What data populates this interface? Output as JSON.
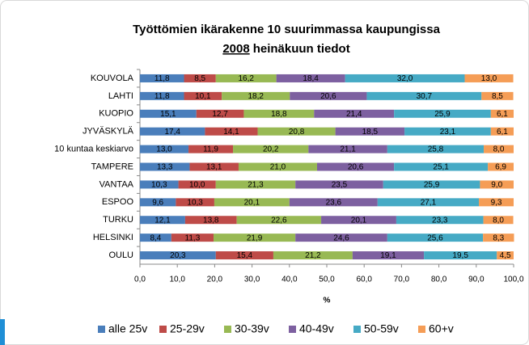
{
  "chart_data": {
    "type": "stacked-bar-horizontal",
    "title": "Työttömien ikärakenne 10 suurimmassa kaupungissa",
    "subtitle_year": "2008",
    "subtitle": "heinäkuun tiedot",
    "xlabel": "%",
    "categories": [
      "KOUVOLA",
      "LAHTI",
      "KUOPIO",
      "JYVÄSKYLÄ",
      "10 kuntaa keskiarvo",
      "TAMPERE",
      "VANTAA",
      "ESPOO",
      "TURKU",
      "HELSINKI",
      "OULU"
    ],
    "series": [
      {
        "name": "alle 25v",
        "color": "#4a7ebb",
        "values": [
          11.8,
          11.8,
          15.1,
          17.4,
          13.0,
          13.3,
          10.3,
          9.6,
          12.1,
          8.4,
          20.3
        ],
        "value_labels": [
          "11,8",
          "11,8",
          "15,1",
          "17,4",
          "13,0",
          "13,3",
          "10,3",
          "9,6",
          "12,1",
          "8,4",
          "20,3"
        ]
      },
      {
        "name": "25-29v",
        "color": "#be4b48",
        "values": [
          8.5,
          10.1,
          12.7,
          14.1,
          11.9,
          13.1,
          10.0,
          10.3,
          13.8,
          11.3,
          15.4
        ],
        "value_labels": [
          "8,5",
          "10,1",
          "12,7",
          "14,1",
          "11,9",
          "13,1",
          "10,0",
          "10,3",
          "13,8",
          "11,3",
          "15,4"
        ]
      },
      {
        "name": "30-39v",
        "color": "#98b954",
        "values": [
          16.2,
          18.2,
          18.8,
          20.8,
          20.2,
          21.0,
          21.3,
          20.1,
          22.6,
          21.9,
          21.2
        ],
        "value_labels": [
          "16,2",
          "18,2",
          "18,8",
          "20,8",
          "20,2",
          "21,0",
          "21,3",
          "20,1",
          "22,6",
          "21,9",
          "21,2"
        ]
      },
      {
        "name": "40-49v",
        "color": "#7d60a0",
        "values": [
          18.4,
          20.6,
          21.4,
          18.5,
          21.1,
          20.6,
          23.5,
          23.6,
          20.1,
          24.6,
          19.1
        ],
        "value_labels": [
          "18,4",
          "20,6",
          "21,4",
          "18,5",
          "21,1",
          "20,6",
          "23,5",
          "23,6",
          "20,1",
          "24,6",
          "19,1"
        ]
      },
      {
        "name": "50-59v",
        "color": "#46aac5",
        "values": [
          32.0,
          30.7,
          25.9,
          23.1,
          25.8,
          25.1,
          25.9,
          27.1,
          23.3,
          25.6,
          19.5
        ],
        "value_labels": [
          "32,0",
          "30,7",
          "25,9",
          "23,1",
          "25,8",
          "25,1",
          "25,9",
          "27,1",
          "23,3",
          "25,6",
          "19,5"
        ]
      },
      {
        "name": "60+v",
        "color": "#f59d56",
        "values": [
          13.0,
          8.5,
          6.1,
          6.1,
          8.0,
          6.9,
          9.0,
          9.3,
          8.0,
          8.3,
          4.5
        ],
        "value_labels": [
          "13,0",
          "8,5",
          "6,1",
          "6,1",
          "8,0",
          "6,9",
          "9,0",
          "9,3",
          "8,0",
          "8,3",
          "4,5"
        ]
      }
    ],
    "xlim": [
      0,
      100
    ],
    "xticks": [
      {
        "value": 0,
        "label": "0,0"
      },
      {
        "value": 10,
        "label": "10,0"
      },
      {
        "value": 20,
        "label": "20,0"
      },
      {
        "value": 30,
        "label": "30,0"
      },
      {
        "value": 40,
        "label": "40,0"
      },
      {
        "value": 50,
        "label": "50,0"
      },
      {
        "value": 60,
        "label": "60,0"
      },
      {
        "value": 70,
        "label": "70,0"
      },
      {
        "value": 80,
        "label": "80,0"
      },
      {
        "value": 90,
        "label": "90,0"
      },
      {
        "value": 100,
        "label": "100,0"
      }
    ],
    "grid": false,
    "legend": "bottom"
  }
}
